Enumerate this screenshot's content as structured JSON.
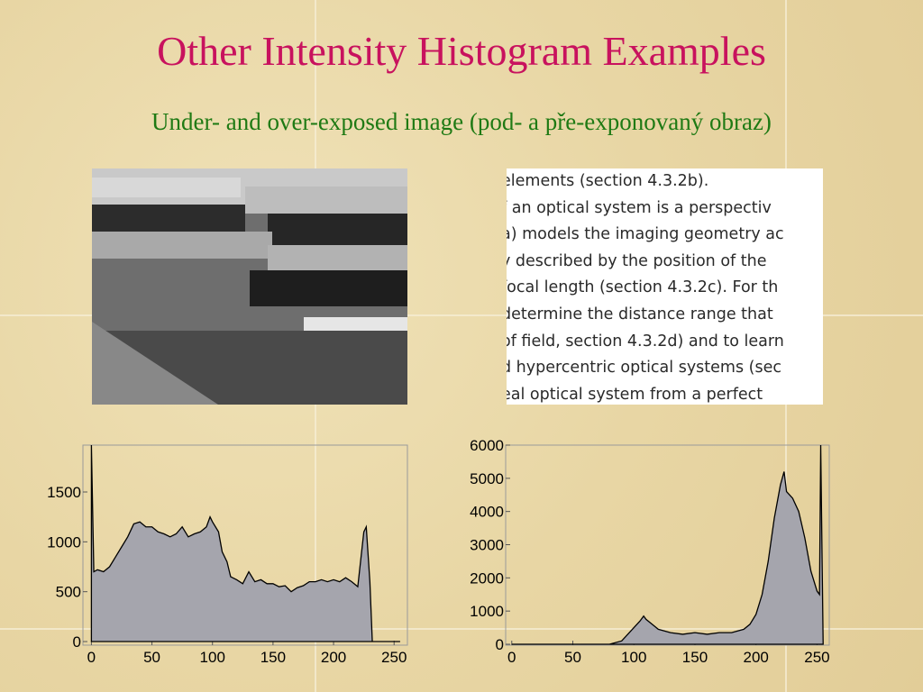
{
  "title": "Other Intensity Histogram Examples",
  "subtitle": "Under- and over-exposed image (pod- a pře-exponovaný obraz)",
  "text_image": {
    "lines": [
      "elements (section 4.3.2b).",
      "f an optical system is a perspectiv",
      "a) models the imaging geometry ac",
      "y described by the position of the",
      "focal length (section 4.3.2c). For th",
      "determine the distance range that",
      "of field, section 4.3.2d) and to learn",
      "d hypercentric optical systems (sec",
      "eal optical system from a perfect"
    ]
  },
  "chart_data": [
    {
      "type": "area",
      "color": "#a5a5ad",
      "x": [
        0,
        2,
        5,
        10,
        15,
        20,
        25,
        30,
        35,
        40,
        45,
        50,
        55,
        60,
        65,
        70,
        75,
        80,
        85,
        90,
        95,
        98,
        100,
        105,
        108,
        112,
        115,
        120,
        125,
        130,
        135,
        140,
        145,
        150,
        155,
        160,
        165,
        170,
        175,
        180,
        185,
        190,
        195,
        200,
        205,
        210,
        215,
        220,
        225,
        227,
        230,
        232,
        240,
        255
      ],
      "values": [
        1970,
        700,
        720,
        700,
        750,
        850,
        950,
        1050,
        1180,
        1200,
        1150,
        1150,
        1100,
        1080,
        1050,
        1080,
        1150,
        1050,
        1080,
        1100,
        1150,
        1250,
        1200,
        1100,
        900,
        800,
        650,
        620,
        580,
        700,
        600,
        620,
        580,
        580,
        550,
        560,
        500,
        540,
        560,
        600,
        600,
        620,
        600,
        620,
        600,
        640,
        600,
        550,
        1100,
        1150,
        600,
        0,
        0,
        0
      ],
      "xlim": [
        -7,
        261
      ],
      "ylim": [
        -36,
        1970
      ],
      "xticks": [
        0,
        50,
        100,
        150,
        200,
        250
      ],
      "yticks": [
        0,
        500,
        1000,
        1500
      ]
    },
    {
      "type": "area",
      "color": "#a5a5ad",
      "x": [
        0,
        50,
        80,
        90,
        95,
        100,
        105,
        108,
        110,
        115,
        120,
        130,
        140,
        150,
        160,
        170,
        180,
        190,
        195,
        200,
        205,
        210,
        215,
        220,
        223,
        225,
        230,
        235,
        240,
        245,
        250,
        252,
        253,
        255
      ],
      "values": [
        0,
        0,
        0,
        100,
        300,
        500,
        700,
        850,
        750,
        600,
        450,
        350,
        300,
        350,
        300,
        350,
        350,
        450,
        600,
        900,
        1500,
        2500,
        3800,
        4800,
        5200,
        4600,
        4400,
        4000,
        3200,
        2200,
        1600,
        1500,
        6000,
        0
      ],
      "xlim": [
        -5,
        260
      ],
      "ylim": [
        -27,
        6000
      ],
      "xticks": [
        0,
        50,
        100,
        150,
        200,
        250
      ],
      "yticks": [
        0,
        1000,
        2000,
        3000,
        4000,
        5000,
        6000
      ]
    }
  ]
}
